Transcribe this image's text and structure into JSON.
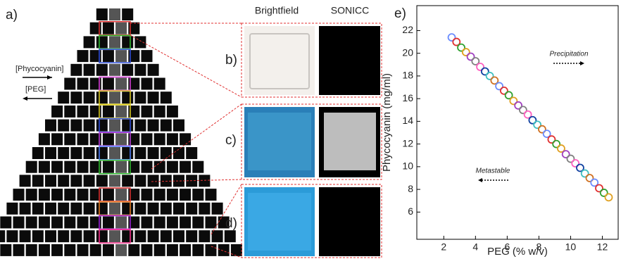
{
  "figure": {
    "panel_labels": [
      "a)",
      "b)",
      "c)",
      "d)",
      "e)"
    ],
    "column_headers": [
      "Brightfield",
      "SONICC"
    ],
    "arrow_labels": [
      "[Phycocyanin]",
      "[PEG]"
    ]
  },
  "chart_data": {
    "type": "scatter",
    "xlabel": "PEG (% w/v)",
    "ylabel": "Phycocyanin (mg/ml)",
    "annotations": [
      "Precipitation",
      "Metastable"
    ],
    "x": [
      2.5,
      2.8,
      3.1,
      3.4,
      3.7,
      4.0,
      4.3,
      4.6,
      4.9,
      5.2,
      5.5,
      5.8,
      6.1,
      6.4,
      6.7,
      7.0,
      7.3,
      7.6,
      7.9,
      8.2,
      8.5,
      8.8,
      9.1,
      9.4,
      9.7,
      10.0,
      10.3,
      10.6,
      10.9,
      11.2,
      11.5,
      11.8,
      12.1,
      12.4
    ],
    "values": [
      21.4,
      21.0,
      20.5,
      20.1,
      19.7,
      19.3,
      18.8,
      18.4,
      18.0,
      17.6,
      17.1,
      16.7,
      16.3,
      15.8,
      15.4,
      15.0,
      14.6,
      14.1,
      13.7,
      13.3,
      12.9,
      12.4,
      12.0,
      11.6,
      11.1,
      10.7,
      10.3,
      9.9,
      9.4,
      9.0,
      8.6,
      8.1,
      7.7,
      7.3
    ],
    "colors": [
      "#6a8cff",
      "#e03030",
      "#30a030",
      "#e0a020",
      "#a040c0",
      "#808080",
      "#ff60c0",
      "#1040a0",
      "#40c0c0",
      "#d07020",
      "#6a8cff",
      "#e03030",
      "#30a030",
      "#e0a020",
      "#a040c0",
      "#808080",
      "#ff60c0",
      "#1040a0",
      "#40c0c0",
      "#d07020",
      "#6a8cff",
      "#e03030",
      "#30a030",
      "#e0a020",
      "#a040c0",
      "#808080",
      "#ff60c0",
      "#1040a0",
      "#40c0c0",
      "#d07020",
      "#6a8cff",
      "#e03030",
      "#30a030",
      "#e0a020"
    ],
    "xlim": [
      0.3,
      13
    ],
    "ylim": [
      3.6,
      24.2
    ],
    "xticks": [
      2,
      4,
      6,
      8,
      10,
      12
    ],
    "yticks": [
      6,
      8,
      10,
      12,
      14,
      16,
      18,
      20,
      22
    ]
  }
}
